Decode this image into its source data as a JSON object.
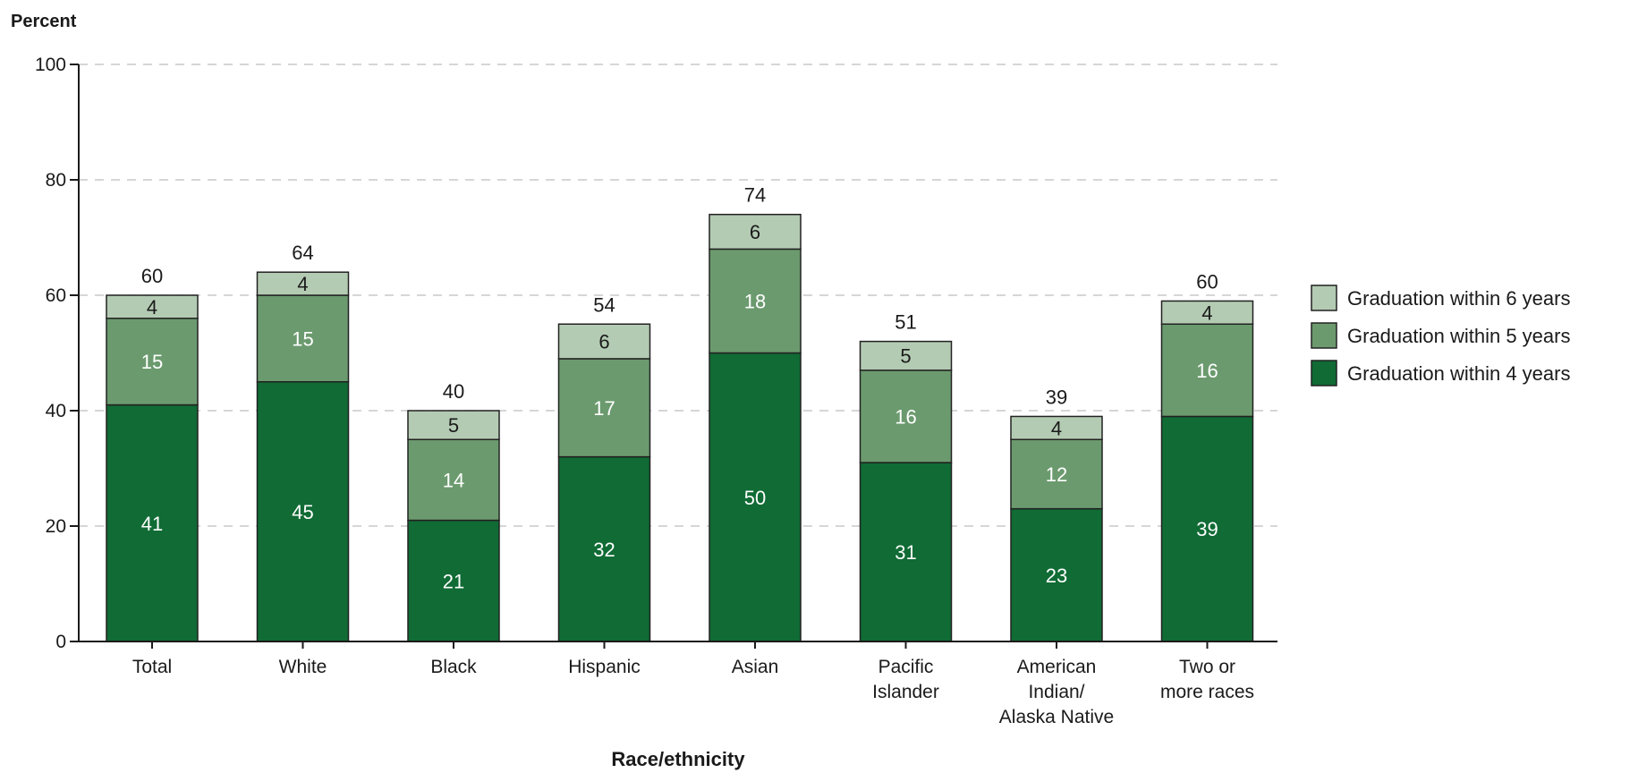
{
  "chart_data": {
    "type": "bar",
    "stacked": true,
    "title": "",
    "xlabel": "Race/ethnicity",
    "ylabel": "Percent",
    "ylim": [
      0,
      100
    ],
    "yticks": [
      0,
      20,
      40,
      60,
      80,
      100
    ],
    "grid": true,
    "legend_position": "right",
    "categories": [
      [
        "Total"
      ],
      [
        "White"
      ],
      [
        "Black"
      ],
      [
        "Hispanic"
      ],
      [
        "Asian"
      ],
      [
        "Pacific",
        "Islander"
      ],
      [
        "American",
        "Indian/",
        "Alaska Native"
      ],
      [
        "Two or",
        "more races"
      ]
    ],
    "series": [
      {
        "name": "Graduation within 4 years",
        "color": "#106b34",
        "label_color": "#ffffff",
        "values": [
          41,
          45,
          21,
          32,
          50,
          31,
          23,
          39
        ]
      },
      {
        "name": "Graduation within 5 years",
        "color": "#6b9a6e",
        "label_color": "#ffffff",
        "values": [
          15,
          15,
          14,
          17,
          18,
          16,
          12,
          16
        ]
      },
      {
        "name": "Graduation within 6 years",
        "color": "#b4cbb3",
        "label_color": "#1a1a1a",
        "values": [
          4,
          4,
          5,
          6,
          6,
          5,
          4,
          4
        ]
      }
    ],
    "totals": [
      60,
      64,
      40,
      54,
      74,
      51,
      39,
      60
    ],
    "legend_order": [
      2,
      1,
      0
    ]
  }
}
